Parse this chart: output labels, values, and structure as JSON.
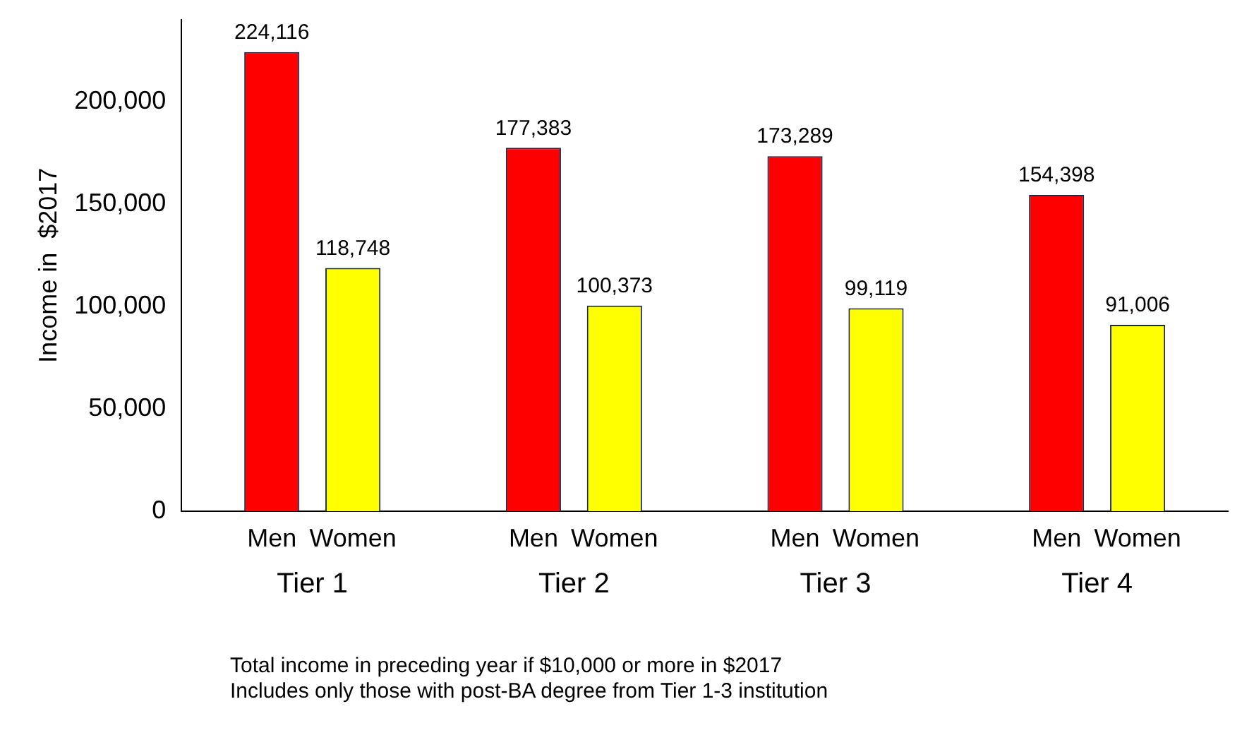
{
  "chart_data": {
    "type": "bar",
    "categories": [
      "Tier 1",
      "Tier 2",
      "Tier 3",
      "Tier 4"
    ],
    "series": [
      {
        "name": "Men",
        "color": "#ff0000",
        "values": [
          224116,
          177383,
          173289,
          154398
        ],
        "value_labels": [
          "224,116",
          "177,383",
          "173,289",
          "154,398"
        ]
      },
      {
        "name": "Women",
        "color": "#ffff00",
        "values": [
          118748,
          100373,
          99119,
          91006
        ],
        "value_labels": [
          "118,748",
          "100,373",
          "99,119",
          "91,006"
        ]
      }
    ],
    "ylabel": "Income in  $2017",
    "ylim": [
      0,
      240000
    ],
    "yticks": [
      0,
      {
        "value": 50000,
        "label": "50,000"
      },
      {
        "value": 100000,
        "label": "100,000"
      },
      {
        "value": 150000,
        "label": "150,000"
      },
      {
        "value": 200000,
        "label": "200,000"
      }
    ],
    "grid": false,
    "legend": false,
    "annotations": [
      "Total income in preceding year if $10,000 or more in $2017",
      "Includes only those with post-BA degree from Tier 1-3 institution"
    ]
  }
}
